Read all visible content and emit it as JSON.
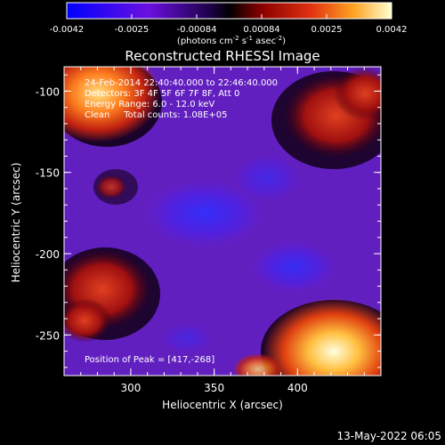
{
  "colorbar": {
    "ticks": [
      "-0.0042",
      "-0.0025",
      "-0.00084",
      "0.00084",
      "0.0025",
      "0.0042"
    ],
    "unit_label": "(photons cm",
    "unit_exp1": "-2",
    "unit_mid1": " s",
    "unit_exp2": "-1",
    "unit_mid2": " asec",
    "unit_exp3": "-2",
    "unit_end": ")"
  },
  "plot": {
    "title": "Reconstructed RHESSI Image",
    "xlabel": "Heliocentric X (arcsec)",
    "ylabel": "Heliocentric Y (arcsec)",
    "x_ticks": [
      "300",
      "350",
      "400"
    ],
    "y_ticks": [
      "-100",
      "-150",
      "-200",
      "-250"
    ],
    "info": [
      "24-Feb-2014 22:40:40.000 to 22:46:40.000",
      "Detectors: 3F 4F 5F 6F 7F 8F, Att 0",
      "Energy Range: 6.0 - 12.0 keV",
      "Clean     Total counts: 1.08E+05"
    ],
    "peak": "Position of Peak = [417,-268]",
    "date_stamp": "13-May-2022 06:05"
  },
  "colors": {
    "background": "#000000",
    "low": "#0000ff",
    "mid_low": "#7a20d6",
    "mid": "#000000",
    "mid_high": "#d03010",
    "high": "#ffffff"
  }
}
